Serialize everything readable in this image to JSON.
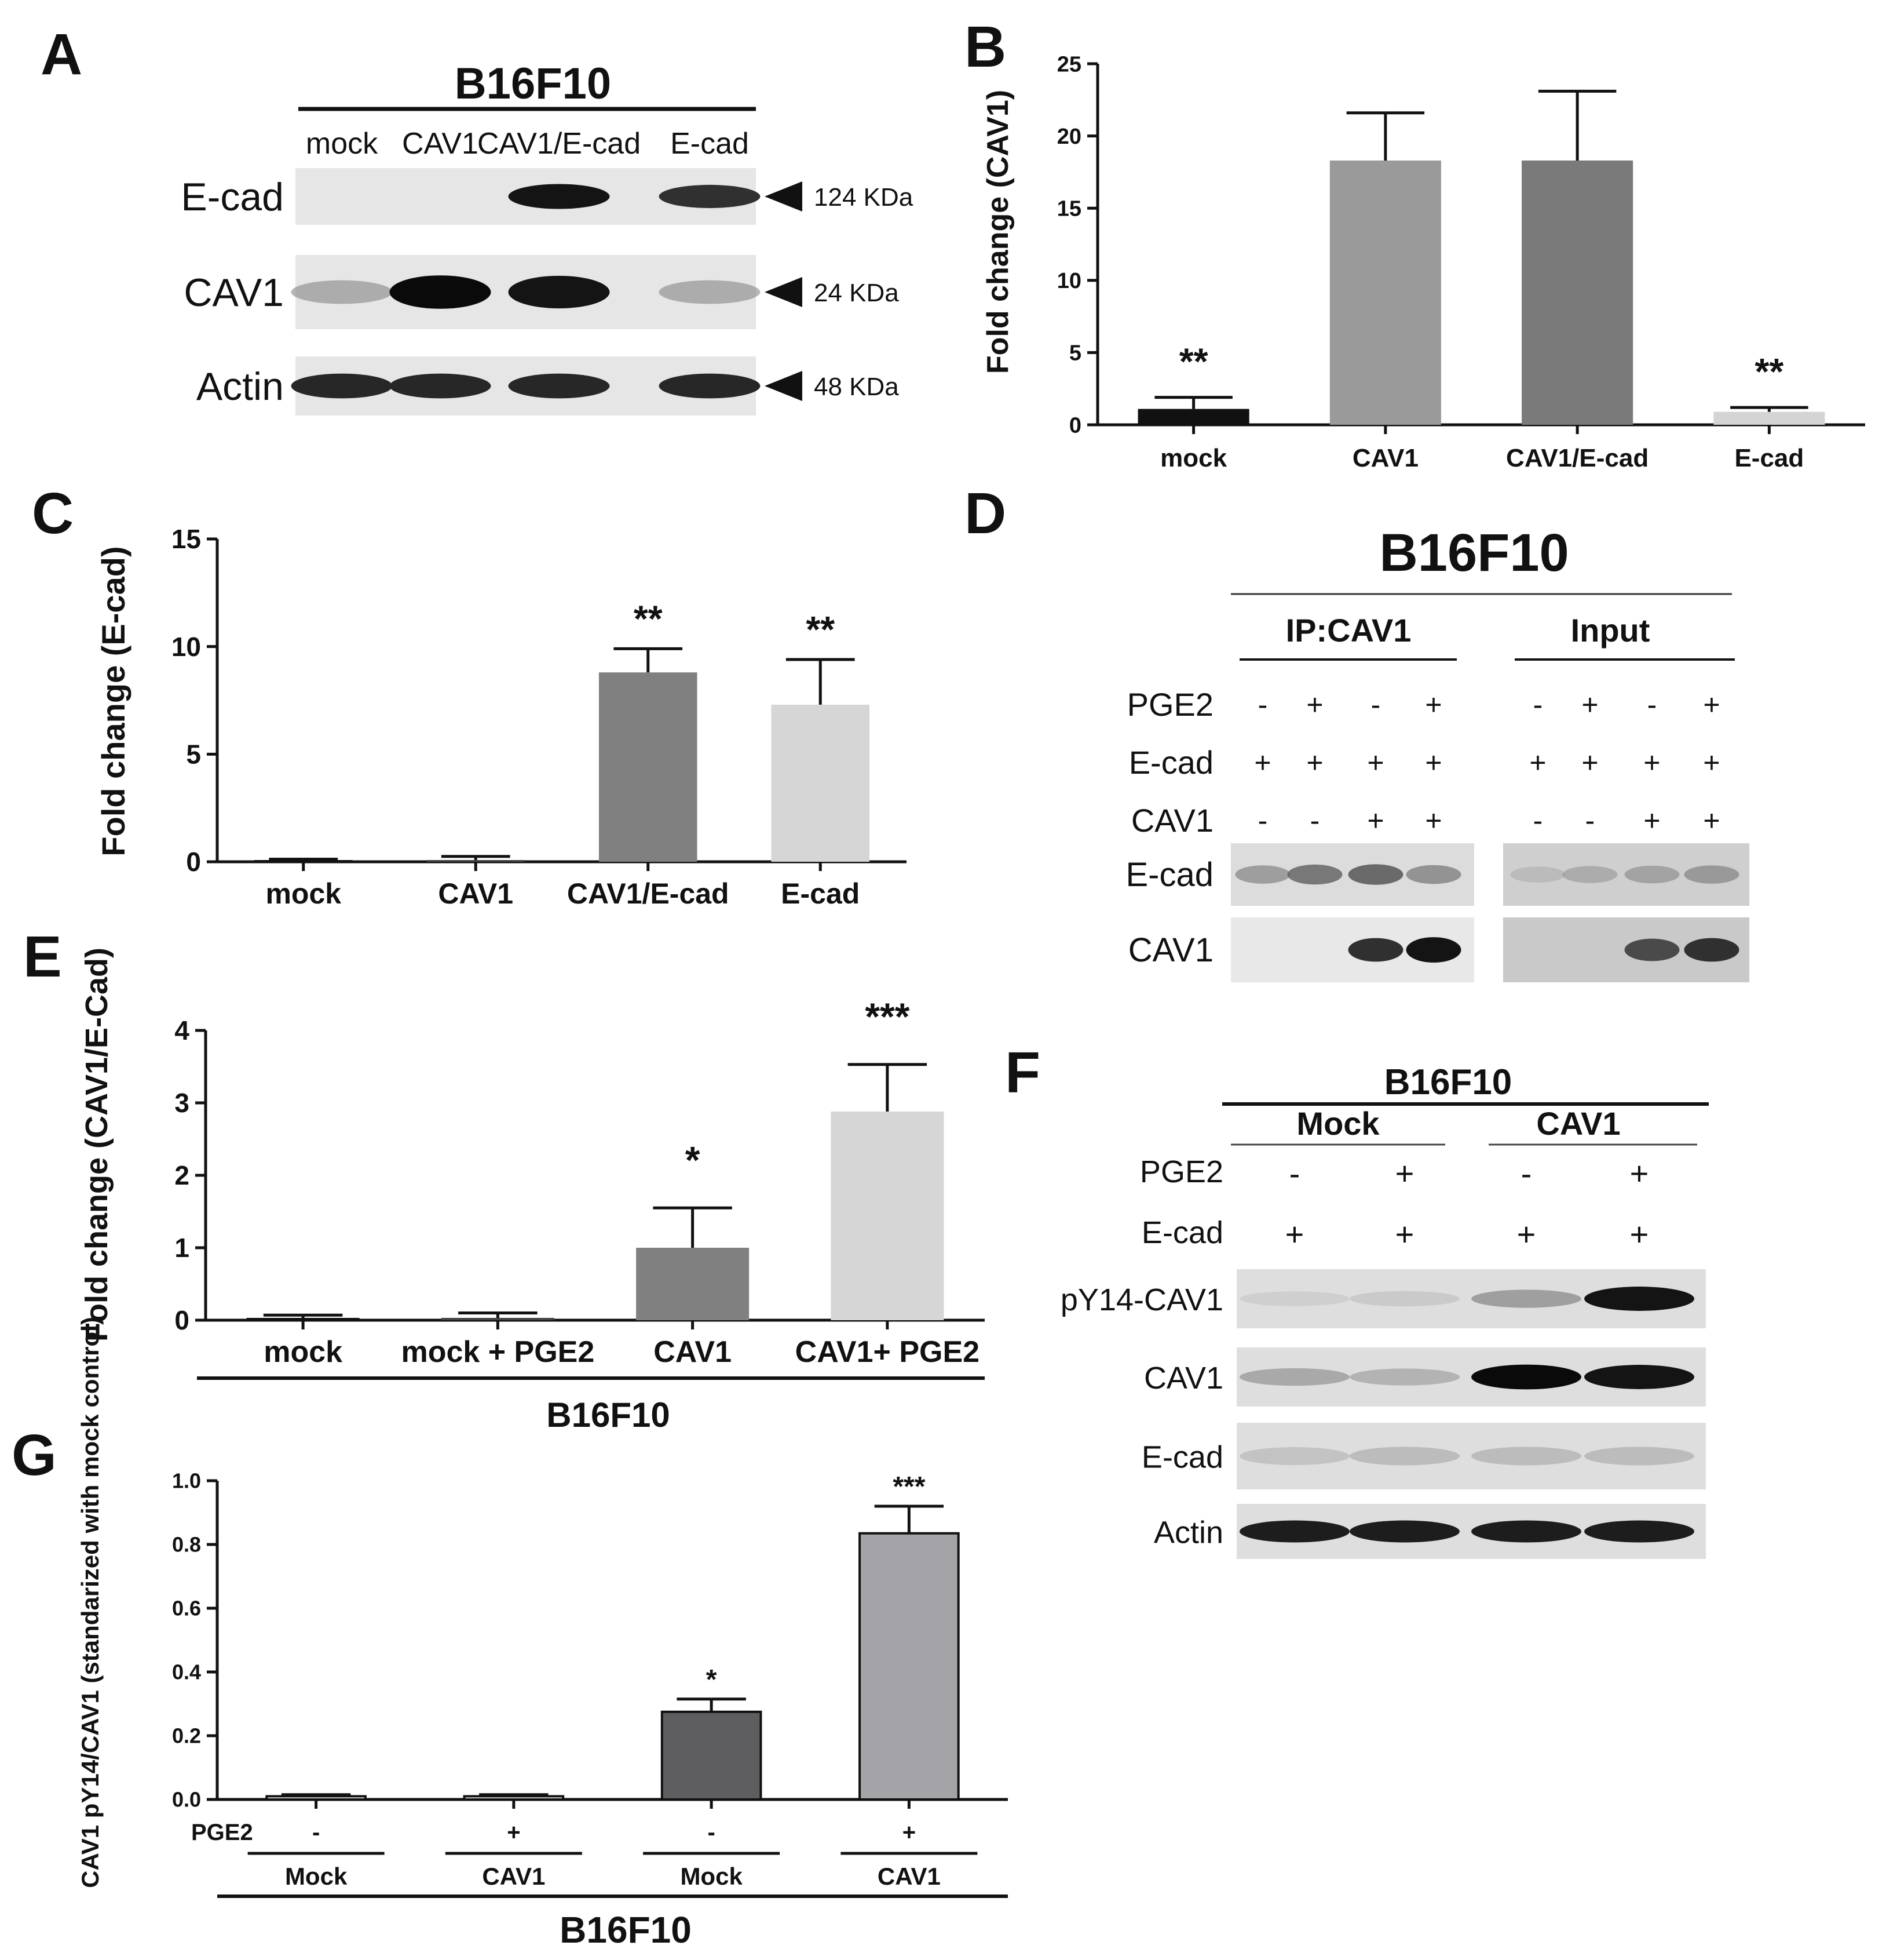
{
  "panel_letters": [
    "A",
    "B",
    "C",
    "D",
    "E",
    "F",
    "G"
  ],
  "panel_a": {
    "cell_line": "B16F10",
    "lanes": [
      "mock",
      "CAV1",
      "CAV1/E-cad",
      "E-cad"
    ],
    "rows": [
      {
        "protein": "E-cad",
        "size": "124 KDa",
        "intensity": [
          0.0,
          0.0,
          0.95,
          0.8
        ]
      },
      {
        "protein": "CAV1",
        "size": "24 KDa",
        "intensity": [
          0.35,
          1.0,
          0.95,
          0.35
        ]
      },
      {
        "protein": "Actin",
        "size": "48 KDa",
        "intensity": [
          0.85,
          0.85,
          0.85,
          0.85
        ]
      }
    ]
  },
  "panel_d": {
    "cell_line": "B16F10",
    "groups": [
      "IP:CAV1",
      "Input"
    ],
    "treatment_rows": [
      {
        "label": "PGE2",
        "signs": [
          "-",
          "+",
          "-",
          "+"
        ]
      },
      {
        "label": "E-cad",
        "signs": [
          "+",
          "+",
          "+",
          "+"
        ]
      },
      {
        "label": "CAV1",
        "signs": [
          "-",
          "-",
          "+",
          "+"
        ]
      }
    ],
    "blot_rows": [
      {
        "protein": "E-cad",
        "ip": [
          0.4,
          0.55,
          0.6,
          0.45
        ],
        "input": [
          0.2,
          0.3,
          0.35,
          0.4
        ]
      },
      {
        "protein": "CAV1",
        "ip": [
          0.0,
          0.0,
          0.8,
          0.95
        ],
        "input": [
          0.0,
          0.0,
          0.7,
          0.8
        ]
      }
    ]
  },
  "panel_f": {
    "cell_line": "B16F10",
    "groups": [
      "Mock",
      "CAV1"
    ],
    "treatment_rows": [
      {
        "label": "PGE2",
        "signs": [
          "-",
          "+",
          "-",
          "+"
        ]
      },
      {
        "label": "E-cad",
        "signs": [
          "+",
          "+",
          "+",
          "+"
        ]
      }
    ],
    "blot_rows": [
      {
        "protein": "pY14-CAV1",
        "intensity": [
          0.1,
          0.15,
          0.4,
          0.95
        ]
      },
      {
        "protein": "CAV1",
        "intensity": [
          0.35,
          0.3,
          1.0,
          0.95
        ]
      },
      {
        "protein": "E-cad",
        "intensity": [
          0.2,
          0.25,
          0.25,
          0.25
        ]
      },
      {
        "protein": "Actin",
        "intensity": [
          0.9,
          0.9,
          0.9,
          0.9
        ]
      }
    ]
  },
  "chart_data": [
    {
      "panel": "B",
      "type": "bar",
      "ylabel": "Fold change (CAV1)",
      "categories": [
        "mock",
        "CAV1",
        "CAV1/E-cad",
        "E-cad"
      ],
      "values": [
        1.1,
        18.3,
        18.3,
        0.9
      ],
      "errors": [
        0.8,
        3.3,
        4.8,
        0.3
      ],
      "significance": [
        "**",
        "",
        "",
        "**"
      ],
      "colors": [
        "#111111",
        "#9a9a9a",
        "#7a7a7a",
        "#d4d4d4"
      ],
      "ylim": [
        0,
        25
      ],
      "yticks": [
        "0",
        "5",
        "10",
        "15",
        "20",
        "25"
      ]
    },
    {
      "panel": "C",
      "type": "bar",
      "ylabel": "Fold change (E-cad)",
      "categories": [
        "mock",
        "CAV1",
        "CAV1/E-cad",
        "E-cad"
      ],
      "values": [
        0.05,
        0.05,
        8.8,
        7.3
      ],
      "errors": [
        0.07,
        0.2,
        1.1,
        2.1
      ],
      "significance": [
        "",
        "",
        "**",
        "**"
      ],
      "colors": [
        "#111111",
        "#444444",
        "#808080",
        "#d6d6d6"
      ],
      "ylim": [
        0,
        15
      ],
      "yticks": [
        "0",
        "5",
        "10",
        "15"
      ]
    },
    {
      "panel": "E",
      "type": "bar",
      "ylabel": "Fold change (CAV1/E-Cad)",
      "xlabel": "B16F10",
      "categories": [
        "mock",
        "mock + PGE2",
        "CAV1",
        "CAV1+ PGE2"
      ],
      "values": [
        0.02,
        0.02,
        1.0,
        2.88
      ],
      "errors": [
        0.05,
        0.08,
        0.55,
        0.65
      ],
      "significance": [
        "",
        "",
        "*",
        "***"
      ],
      "colors": [
        "#111111",
        "#444444",
        "#808080",
        "#d6d6d6"
      ],
      "ylim": [
        0,
        4
      ],
      "yticks": [
        "0",
        "1",
        "2",
        "3",
        "4"
      ]
    },
    {
      "panel": "G",
      "type": "bar",
      "ylabel": "CAV1 pY14/CAV1 (standarized with mock control)",
      "xlabel": "B16F10",
      "pge2_label": "PGE2",
      "pge2": [
        "-",
        "+",
        "-",
        "+"
      ],
      "categories": [
        "Mock",
        "CAV1",
        "Mock",
        "CAV1"
      ],
      "values": [
        0.01,
        0.01,
        0.275,
        0.835
      ],
      "errors": [
        0.005,
        0.005,
        0.04,
        0.085
      ],
      "significance": [
        "",
        "",
        "*",
        "***"
      ],
      "colors": [
        "#ffffff",
        "#ffffff",
        "#5e5e60",
        "#a3a3a8"
      ],
      "ylim": [
        0,
        1.0
      ],
      "yticks": [
        "0.0",
        "0.2",
        "0.4",
        "0.6",
        "0.8",
        "1.0"
      ]
    }
  ]
}
